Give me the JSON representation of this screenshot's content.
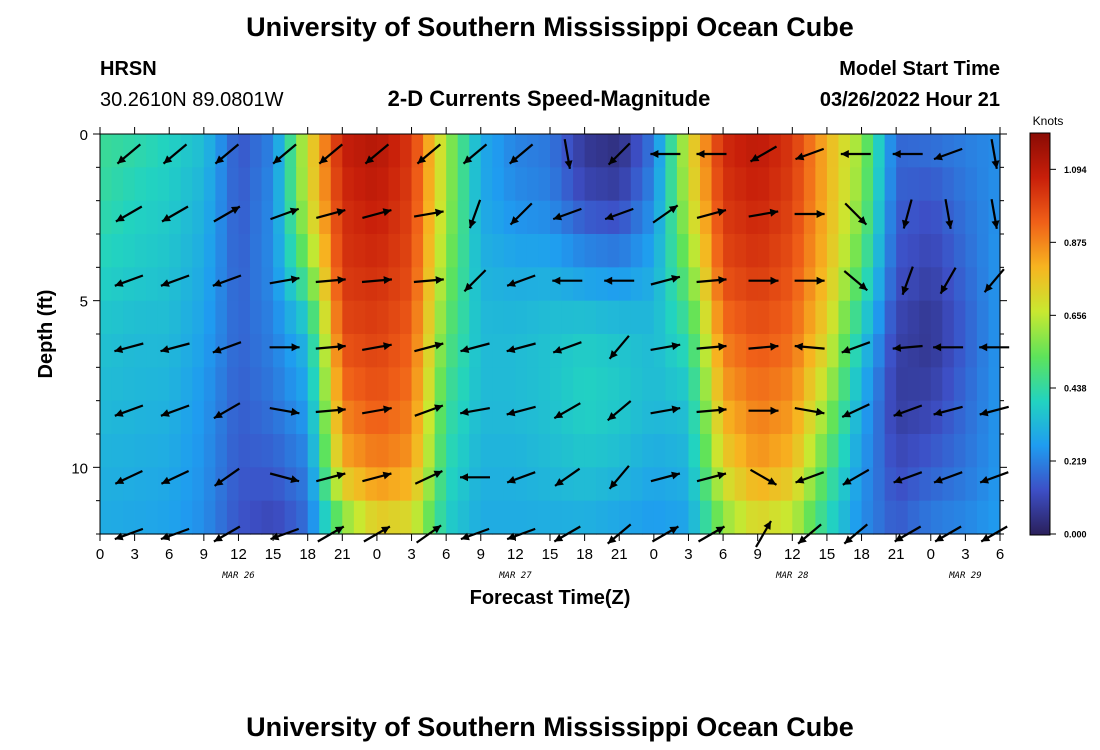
{
  "header": {
    "title": "University of Southern Mississippi Ocean Cube",
    "station": "HRSN",
    "coords": "30.2610N  89.0801W",
    "subtitle": "2-D Currents Speed-Magnitude",
    "model_start_label": "Model Start Time",
    "model_start_value": "03/26/2022 Hour 21"
  },
  "footer": {
    "title": "University of Southern Mississippi Ocean Cube"
  },
  "colors": {
    "palette": [
      "#2a1f5a",
      "#3d4fc6",
      "#1f9cf0",
      "#22d3c0",
      "#5ee35a",
      "#c9e830",
      "#f7b420",
      "#f06018",
      "#c81f0a",
      "#8a0b04"
    ]
  },
  "chart_data": {
    "type": "heatmap",
    "title": "2-D Currents Speed-Magnitude",
    "xlabel": "Forecast Time(Z)",
    "ylabel": "Depth (ft)",
    "x_hours_range": [
      0,
      78
    ],
    "y_range": [
      0,
      12
    ],
    "x_tick_labels": [
      "0",
      "3",
      "6",
      "9",
      "12",
      "15",
      "18",
      "21",
      "0",
      "3",
      "6",
      "9",
      "12",
      "15",
      "18",
      "21",
      "0",
      "3",
      "6",
      "9",
      "12",
      "15",
      "18",
      "21",
      "0",
      "3",
      "6"
    ],
    "y_ticks": [
      0,
      5,
      10
    ],
    "y_tick_labels": [
      "0",
      "5",
      "10"
    ],
    "date_labels": [
      {
        "label": "MAR 26",
        "hour": 12
      },
      {
        "label": "MAR 27",
        "hour": 36
      },
      {
        "label": "MAR 28",
        "hour": 60
      },
      {
        "label": "MAR 29",
        "hour": 75
      }
    ],
    "colorbar": {
      "label": "Knots",
      "min": 0.0,
      "max": 1.2,
      "ticks": [
        0.0,
        0.219,
        0.438,
        0.656,
        0.875,
        1.094
      ],
      "tick_labels": [
        "0.000",
        "0.219",
        "0.438",
        "0.656",
        "0.875",
        "1.094"
      ]
    },
    "vector_depths_ft": [
      0.6,
      2.4,
      4.4,
      6.4,
      8.3,
      10.3,
      12.0
    ],
    "vector_hours": [
      2.5,
      6.5,
      11,
      16,
      20,
      24,
      28.5,
      32.5,
      36.5,
      40.5,
      45,
      49,
      53,
      57.5,
      61.5,
      65.5,
      70,
      73.5,
      77.5
    ],
    "speed_grid": {
      "depths_ft": [
        0,
        2,
        4,
        6,
        8,
        10,
        12
      ],
      "hours": [
        0,
        3,
        6,
        9,
        12,
        15,
        18,
        21,
        24,
        27,
        30,
        33,
        36,
        39,
        42,
        45,
        48,
        51,
        54,
        57,
        60,
        63,
        66,
        69,
        72,
        75,
        78
      ],
      "values": [
        [
          0.46,
          0.44,
          0.4,
          0.35,
          0.14,
          0.22,
          0.7,
          1.08,
          1.12,
          1.02,
          0.62,
          0.3,
          0.22,
          0.2,
          0.06,
          0.03,
          0.2,
          0.7,
          1.05,
          1.1,
          1.02,
          0.8,
          0.6,
          0.18,
          0.2,
          0.22,
          0.24
        ],
        [
          0.44,
          0.4,
          0.38,
          0.32,
          0.15,
          0.24,
          0.68,
          1.04,
          1.08,
          1.0,
          0.62,
          0.3,
          0.24,
          0.22,
          0.12,
          0.1,
          0.24,
          0.66,
          1.02,
          1.06,
          1.0,
          0.8,
          0.58,
          0.16,
          0.14,
          0.2,
          0.25
        ],
        [
          0.4,
          0.38,
          0.36,
          0.3,
          0.16,
          0.24,
          0.55,
          1.02,
          1.04,
          0.98,
          0.58,
          0.32,
          0.3,
          0.3,
          0.26,
          0.24,
          0.3,
          0.56,
          0.98,
          1.02,
          0.96,
          0.78,
          0.5,
          0.14,
          0.1,
          0.18,
          0.26
        ],
        [
          0.36,
          0.34,
          0.34,
          0.28,
          0.17,
          0.22,
          0.34,
          0.98,
          1.0,
          0.94,
          0.52,
          0.34,
          0.34,
          0.36,
          0.38,
          0.36,
          0.34,
          0.44,
          0.9,
          0.96,
          0.92,
          0.72,
          0.38,
          0.1,
          0.06,
          0.16,
          0.26
        ],
        [
          0.34,
          0.33,
          0.32,
          0.26,
          0.16,
          0.2,
          0.28,
          0.9,
          0.96,
          0.9,
          0.46,
          0.34,
          0.34,
          0.36,
          0.4,
          0.38,
          0.34,
          0.36,
          0.82,
          0.9,
          0.86,
          0.62,
          0.3,
          0.08,
          0.1,
          0.18,
          0.26
        ],
        [
          0.32,
          0.31,
          0.3,
          0.25,
          0.15,
          0.16,
          0.22,
          0.8,
          0.88,
          0.84,
          0.42,
          0.32,
          0.32,
          0.34,
          0.36,
          0.34,
          0.3,
          0.32,
          0.72,
          0.84,
          0.78,
          0.5,
          0.26,
          0.12,
          0.16,
          0.2,
          0.26
        ],
        [
          0.3,
          0.29,
          0.28,
          0.24,
          0.14,
          0.1,
          0.18,
          0.52,
          0.7,
          0.66,
          0.38,
          0.3,
          0.3,
          0.3,
          0.3,
          0.28,
          0.26,
          0.28,
          0.56,
          0.68,
          0.62,
          0.4,
          0.24,
          0.16,
          0.22,
          0.24,
          0.27
        ]
      ]
    },
    "vector_angles_deg": [
      [
        220,
        220,
        220,
        220,
        220,
        220,
        220,
        220,
        220,
        280,
        225,
        180,
        180,
        210,
        200,
        180,
        180,
        200,
        280
      ],
      [
        210,
        210,
        30,
        20,
        15,
        15,
        10,
        250,
        225,
        200,
        200,
        35,
        15,
        10,
        0,
        315,
        255,
        280,
        280
      ],
      [
        200,
        200,
        200,
        10,
        5,
        5,
        5,
        225,
        200,
        180,
        180,
        15,
        5,
        0,
        0,
        320,
        250,
        240,
        230
      ],
      [
        195,
        195,
        200,
        0,
        5,
        10,
        15,
        195,
        195,
        200,
        230,
        10,
        5,
        5,
        175,
        200,
        185,
        180,
        180
      ],
      [
        200,
        200,
        210,
        350,
        5,
        10,
        20,
        190,
        195,
        210,
        220,
        10,
        5,
        0,
        350,
        205,
        200,
        195,
        195
      ],
      [
        205,
        205,
        215,
        345,
        15,
        15,
        25,
        180,
        200,
        215,
        230,
        15,
        15,
        330,
        200,
        210,
        200,
        200,
        200
      ],
      [
        200,
        200,
        210,
        200,
        30,
        30,
        35,
        200,
        200,
        210,
        220,
        30,
        30,
        60,
        220,
        220,
        210,
        210,
        210
      ]
    ]
  }
}
